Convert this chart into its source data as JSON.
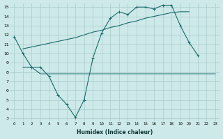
{
  "xlabel": "Humidex (Indice chaleur)",
  "background_color": "#cde9e9",
  "grid_color": "#aacccc",
  "line_color": "#1a6b6b",
  "x_range": [
    -0.5,
    23.5
  ],
  "y_range": [
    2.7,
    15.4
  ],
  "yticks": [
    3,
    4,
    5,
    6,
    7,
    8,
    9,
    10,
    11,
    12,
    13,
    14,
    15
  ],
  "xticks": [
    0,
    1,
    2,
    3,
    4,
    5,
    6,
    7,
    8,
    9,
    10,
    11,
    12,
    13,
    14,
    15,
    16,
    17,
    18,
    19,
    20,
    21,
    22,
    23
  ],
  "line1": {
    "x": [
      0,
      1,
      2,
      3,
      4,
      5,
      6,
      7,
      8,
      9,
      10,
      11,
      12,
      13,
      14,
      15,
      16,
      17,
      18,
      19,
      20,
      21
    ],
    "y": [
      11.8,
      10.0,
      8.5,
      8.5,
      7.5,
      5.5,
      4.5,
      3.1,
      5.0,
      9.5,
      12.2,
      13.8,
      14.5,
      14.2,
      15.0,
      15.0,
      14.8,
      15.2,
      15.2,
      13.0,
      11.2,
      9.8
    ]
  },
  "line2": {
    "x": [
      1,
      2,
      3,
      4,
      5,
      6,
      7,
      8,
      9,
      10,
      11,
      12,
      13,
      14,
      15,
      16,
      17,
      18,
      19,
      20
    ],
    "y": [
      10.5,
      10.7,
      10.9,
      11.1,
      11.3,
      11.5,
      11.7,
      12.0,
      12.3,
      12.5,
      12.8,
      13.0,
      13.3,
      13.5,
      13.8,
      14.0,
      14.2,
      14.4,
      14.5,
      14.5
    ]
  },
  "line3": {
    "x": [
      1,
      2,
      3,
      4,
      5,
      6,
      7,
      8,
      9,
      10,
      11,
      12,
      13,
      14,
      15,
      16,
      17,
      18,
      19,
      20,
      21,
      22,
      23
    ],
    "y": [
      8.5,
      8.5,
      7.8,
      7.8,
      7.8,
      7.8,
      7.8,
      7.8,
      7.8,
      7.8,
      7.8,
      7.8,
      7.8,
      7.8,
      7.8,
      7.8,
      7.8,
      7.8,
      7.8,
      7.8,
      7.8,
      7.8,
      7.8
    ]
  }
}
